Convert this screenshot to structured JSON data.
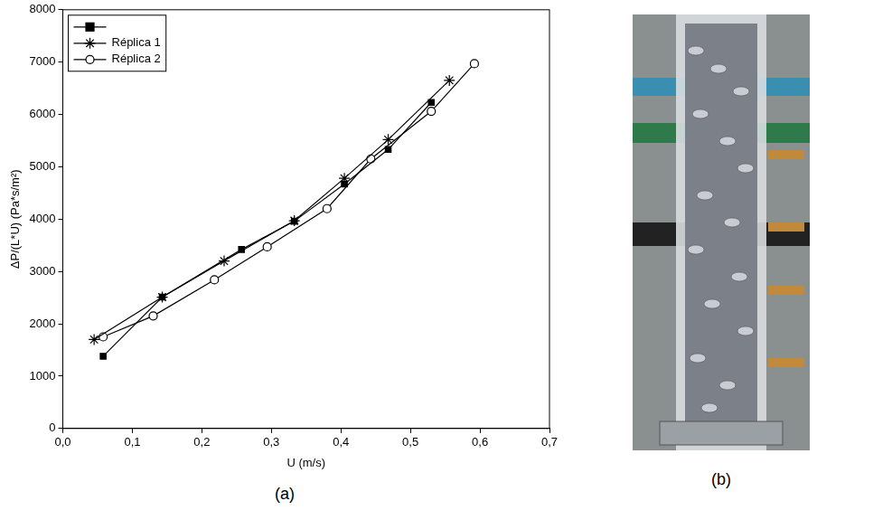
{
  "chart_data": {
    "type": "line",
    "x_label": "U (m/s)",
    "y_label": "ΔP/(L*U) (Pa*s/m²)",
    "caption": "(a)",
    "xlim": [
      0,
      0.7
    ],
    "xticks": [
      {
        "value": 0,
        "label": "0,0"
      },
      {
        "value": 0.1,
        "label": "0,1"
      },
      {
        "value": 0.2,
        "label": "0,2"
      },
      {
        "value": 0.3,
        "label": "0,3"
      },
      {
        "value": 0.4,
        "label": "0,4"
      },
      {
        "value": 0.5,
        "label": "0,5"
      },
      {
        "value": 0.6,
        "label": "0,6"
      },
      {
        "value": 0.7,
        "label": "0,7"
      }
    ],
    "ylim": [
      0,
      8000
    ],
    "yticks": [
      0,
      1000,
      2000,
      3000,
      4000,
      5000,
      6000,
      7000,
      8000
    ],
    "grid": false,
    "legend": "upper left",
    "series": [
      {
        "name": null,
        "color": "#000000",
        "marker": "square",
        "line_style": "solid",
        "x": [
          0.058,
          0.143,
          0.257,
          0.333,
          0.405,
          0.468,
          0.53
        ],
        "values": [
          1380,
          2510,
          3420,
          3960,
          4670,
          5330,
          6230
        ]
      },
      {
        "name": "Réplica 1",
        "color": "#000000",
        "marker": "star",
        "line_style": "solid",
        "x": [
          0.045,
          0.143,
          0.232,
          0.333,
          0.405,
          0.468,
          0.556
        ],
        "values": [
          1700,
          2510,
          3200,
          3970,
          4780,
          5520,
          6650
        ]
      },
      {
        "name": "Réplica 2",
        "color": "#000000",
        "marker": "circle_open",
        "line_style": "solid",
        "x": [
          0.058,
          0.13,
          0.218,
          0.294,
          0.38,
          0.443,
          0.53,
          0.592
        ],
        "values": [
          1750,
          2150,
          2840,
          3470,
          4200,
          5150,
          6060,
          6970
        ]
      }
    ]
  },
  "photo": {
    "caption": "(b)"
  }
}
